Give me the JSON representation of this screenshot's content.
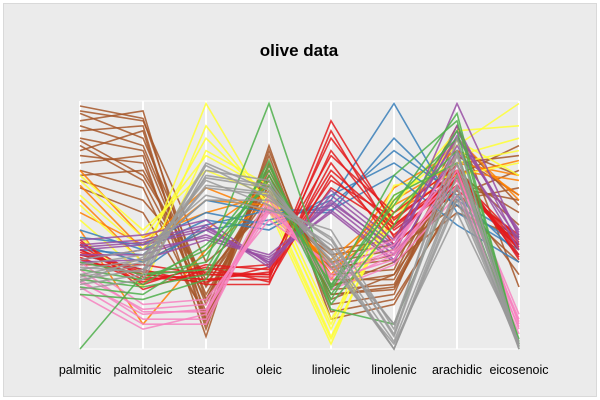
{
  "chart_data": {
    "type": "parallel-coordinates",
    "title": "olive data",
    "axes": [
      "palmitic",
      "palmitoleic",
      "stearic",
      "oleic",
      "linoleic",
      "linolenic",
      "arachidic",
      "eicosenoic"
    ],
    "value_range": [
      0,
      1
    ],
    "background": "#ebebeb",
    "grid": false,
    "series": [
      {
        "color": "#a65628",
        "lines": [
          [
            0.98,
            0.93,
            0.2,
            0.7,
            0.22,
            0.25,
            0.7,
            0.55
          ],
          [
            0.92,
            0.96,
            0.12,
            0.75,
            0.2,
            0.3,
            0.65,
            0.6
          ],
          [
            0.88,
            0.9,
            0.08,
            0.8,
            0.18,
            0.22,
            0.8,
            0.7
          ],
          [
            0.95,
            0.85,
            0.25,
            0.68,
            0.25,
            0.35,
            0.55,
            0.45
          ],
          [
            0.85,
            0.8,
            0.18,
            0.72,
            0.28,
            0.28,
            0.75,
            0.78
          ],
          [
            0.8,
            0.88,
            0.1,
            0.78,
            0.15,
            0.2,
            0.6,
            0.65
          ],
          [
            0.9,
            0.82,
            0.22,
            0.66,
            0.3,
            0.32,
            0.85,
            0.58
          ],
          [
            0.78,
            0.75,
            0.15,
            0.74,
            0.24,
            0.26,
            0.72,
            0.5
          ],
          [
            0.84,
            0.7,
            0.28,
            0.64,
            0.32,
            0.38,
            0.68,
            0.4
          ],
          [
            0.75,
            0.78,
            0.05,
            0.82,
            0.12,
            0.18,
            0.62,
            0.72
          ],
          [
            0.7,
            0.72,
            0.26,
            0.62,
            0.35,
            0.4,
            0.58,
            0.35
          ],
          [
            0.72,
            0.65,
            0.12,
            0.7,
            0.26,
            0.3,
            0.78,
            0.62
          ],
          [
            0.68,
            0.6,
            0.3,
            0.58,
            0.38,
            0.42,
            0.64,
            0.3
          ],
          [
            0.82,
            0.68,
            0.2,
            0.66,
            0.22,
            0.24,
            0.7,
            0.82
          ],
          [
            0.65,
            0.55,
            0.14,
            0.6,
            0.33,
            0.36,
            0.66,
            0.45
          ],
          [
            0.96,
            0.92,
            0.35,
            0.56,
            0.4,
            0.44,
            0.9,
            0.25
          ]
        ]
      },
      {
        "color": "#ff7f00",
        "lines": [
          [
            0.72,
            0.45,
            0.55,
            0.62,
            0.3,
            0.6,
            0.75,
            0.7
          ],
          [
            0.66,
            0.4,
            0.6,
            0.58,
            0.34,
            0.55,
            0.7,
            0.76
          ],
          [
            0.6,
            0.35,
            0.48,
            0.66,
            0.28,
            0.65,
            0.8,
            0.62
          ],
          [
            0.55,
            0.42,
            0.65,
            0.55,
            0.36,
            0.58,
            0.72,
            0.68
          ],
          [
            0.48,
            0.1,
            0.4,
            0.6,
            0.32,
            0.5,
            0.85,
            0.6
          ]
        ]
      },
      {
        "color": "#ffff33",
        "lines": [
          [
            0.58,
            0.35,
            0.99,
            0.56,
            0.02,
            0.6,
            0.82,
            0.99
          ],
          [
            0.62,
            0.4,
            0.85,
            0.6,
            0.05,
            0.55,
            0.78,
            0.85
          ],
          [
            0.68,
            0.45,
            0.78,
            0.64,
            0.08,
            0.62,
            0.75,
            0.8
          ],
          [
            0.52,
            0.3,
            0.9,
            0.58,
            0.04,
            0.58,
            0.88,
            0.9
          ],
          [
            0.7,
            0.48,
            0.72,
            0.62,
            0.1,
            0.66,
            0.7,
            0.75
          ],
          [
            0.45,
            0.25,
            0.8,
            0.66,
            0.12,
            0.52,
            0.84,
            0.7
          ]
        ]
      },
      {
        "color": "#377eb8",
        "lines": [
          [
            0.45,
            0.42,
            0.55,
            0.5,
            0.6,
            0.99,
            0.55,
            0.4
          ],
          [
            0.4,
            0.38,
            0.6,
            0.55,
            0.55,
            0.85,
            0.6,
            0.45
          ],
          [
            0.42,
            0.35,
            0.48,
            0.52,
            0.58,
            0.8,
            0.62,
            0.38
          ],
          [
            0.48,
            0.4,
            0.52,
            0.48,
            0.62,
            0.75,
            0.58,
            0.42
          ],
          [
            0.38,
            0.32,
            0.5,
            0.56,
            0.56,
            0.7,
            0.5,
            0.35
          ]
        ]
      },
      {
        "color": "#e41a1c",
        "lines": [
          [
            0.4,
            0.28,
            0.3,
            0.3,
            0.92,
            0.5,
            0.68,
            0.4
          ],
          [
            0.36,
            0.3,
            0.28,
            0.28,
            0.88,
            0.45,
            0.7,
            0.44
          ],
          [
            0.42,
            0.26,
            0.34,
            0.32,
            0.85,
            0.52,
            0.72,
            0.38
          ],
          [
            0.38,
            0.32,
            0.26,
            0.26,
            0.8,
            0.48,
            0.66,
            0.42
          ],
          [
            0.44,
            0.24,
            0.32,
            0.34,
            0.78,
            0.55,
            0.74,
            0.36
          ],
          [
            0.34,
            0.34,
            0.3,
            0.29,
            0.75,
            0.42,
            0.64,
            0.46
          ],
          [
            0.4,
            0.3,
            0.28,
            0.31,
            0.72,
            0.5,
            0.7,
            0.4
          ],
          [
            0.37,
            0.27,
            0.33,
            0.27,
            0.7,
            0.46,
            0.68,
            0.43
          ],
          [
            0.43,
            0.29,
            0.27,
            0.33,
            0.68,
            0.53,
            0.71,
            0.37
          ],
          [
            0.39,
            0.31,
            0.31,
            0.3,
            0.65,
            0.49,
            0.69,
            0.41
          ]
        ]
      },
      {
        "color": "#984ea3",
        "lines": [
          [
            0.4,
            0.42,
            0.48,
            0.35,
            0.6,
            0.4,
            0.99,
            0.45
          ],
          [
            0.36,
            0.4,
            0.45,
            0.38,
            0.58,
            0.38,
            0.9,
            0.42
          ],
          [
            0.42,
            0.44,
            0.5,
            0.33,
            0.62,
            0.42,
            0.85,
            0.48
          ],
          [
            0.38,
            0.38,
            0.46,
            0.36,
            0.56,
            0.36,
            0.8,
            0.44
          ],
          [
            0.44,
            0.46,
            0.52,
            0.34,
            0.64,
            0.44,
            0.88,
            0.46
          ],
          [
            0.35,
            0.36,
            0.44,
            0.37,
            0.55,
            0.35,
            0.82,
            0.4
          ],
          [
            0.41,
            0.43,
            0.49,
            0.35,
            0.59,
            0.41,
            0.86,
            0.47
          ]
        ]
      },
      {
        "color": "#f781bf",
        "lines": [
          [
            0.32,
            0.15,
            0.15,
            0.55,
            0.3,
            0.4,
            0.78,
            0.1
          ],
          [
            0.28,
            0.12,
            0.12,
            0.58,
            0.28,
            0.36,
            0.72,
            0.08
          ],
          [
            0.35,
            0.18,
            0.2,
            0.52,
            0.34,
            0.44,
            0.7,
            0.12
          ],
          [
            0.25,
            0.1,
            0.1,
            0.6,
            0.26,
            0.38,
            0.66,
            0.06
          ],
          [
            0.3,
            0.16,
            0.18,
            0.56,
            0.32,
            0.42,
            0.74,
            0.14
          ],
          [
            0.22,
            0.08,
            0.14,
            0.62,
            0.24,
            0.34,
            0.62,
            0.09
          ],
          [
            0.27,
            0.14,
            0.16,
            0.57,
            0.29,
            0.39,
            0.68,
            0.11
          ]
        ]
      },
      {
        "color": "#4daf4a",
        "lines": [
          [
            0.0,
            0.3,
            0.35,
            0.99,
            0.25,
            0.7,
            0.92,
            0.01
          ],
          [
            0.28,
            0.25,
            0.3,
            0.7,
            0.2,
            0.6,
            0.85,
            0.02
          ],
          [
            0.32,
            0.28,
            0.4,
            0.72,
            0.22,
            0.55,
            0.8,
            0.03
          ],
          [
            0.25,
            0.22,
            0.38,
            0.68,
            0.18,
            0.5,
            0.88,
            0.0
          ],
          [
            0.35,
            0.3,
            0.32,
            0.74,
            0.24,
            0.62,
            0.75,
            0.04
          ],
          [
            0.22,
            0.2,
            0.28,
            0.76,
            0.16,
            0.1,
            0.7,
            0.02
          ],
          [
            0.3,
            0.26,
            0.42,
            0.66,
            0.26,
            0.58,
            0.95,
            0.01
          ]
        ]
      },
      {
        "color": "#999999",
        "lines": [
          [
            0.3,
            0.35,
            0.65,
            0.62,
            0.4,
            0.1,
            0.7,
            0.01
          ],
          [
            0.26,
            0.3,
            0.7,
            0.66,
            0.35,
            0.0,
            0.65,
            0.0
          ],
          [
            0.34,
            0.38,
            0.6,
            0.6,
            0.45,
            0.05,
            0.75,
            0.02
          ],
          [
            0.28,
            0.32,
            0.75,
            0.64,
            0.38,
            0.0,
            0.6,
            0.01
          ],
          [
            0.32,
            0.36,
            0.68,
            0.58,
            0.42,
            0.1,
            0.8,
            0.0
          ],
          [
            0.24,
            0.28,
            0.72,
            0.68,
            0.33,
            0.02,
            0.55,
            0.03
          ],
          [
            0.36,
            0.4,
            0.62,
            0.56,
            0.48,
            0.08,
            0.85,
            0.01
          ],
          [
            0.29,
            0.34,
            0.66,
            0.63,
            0.36,
            0.0,
            0.62,
            0.02
          ],
          [
            0.33,
            0.31,
            0.74,
            0.61,
            0.44,
            0.06,
            0.78,
            0.0
          ],
          [
            0.27,
            0.37,
            0.69,
            0.65,
            0.39,
            0.03,
            0.66,
            0.01
          ]
        ]
      }
    ]
  }
}
